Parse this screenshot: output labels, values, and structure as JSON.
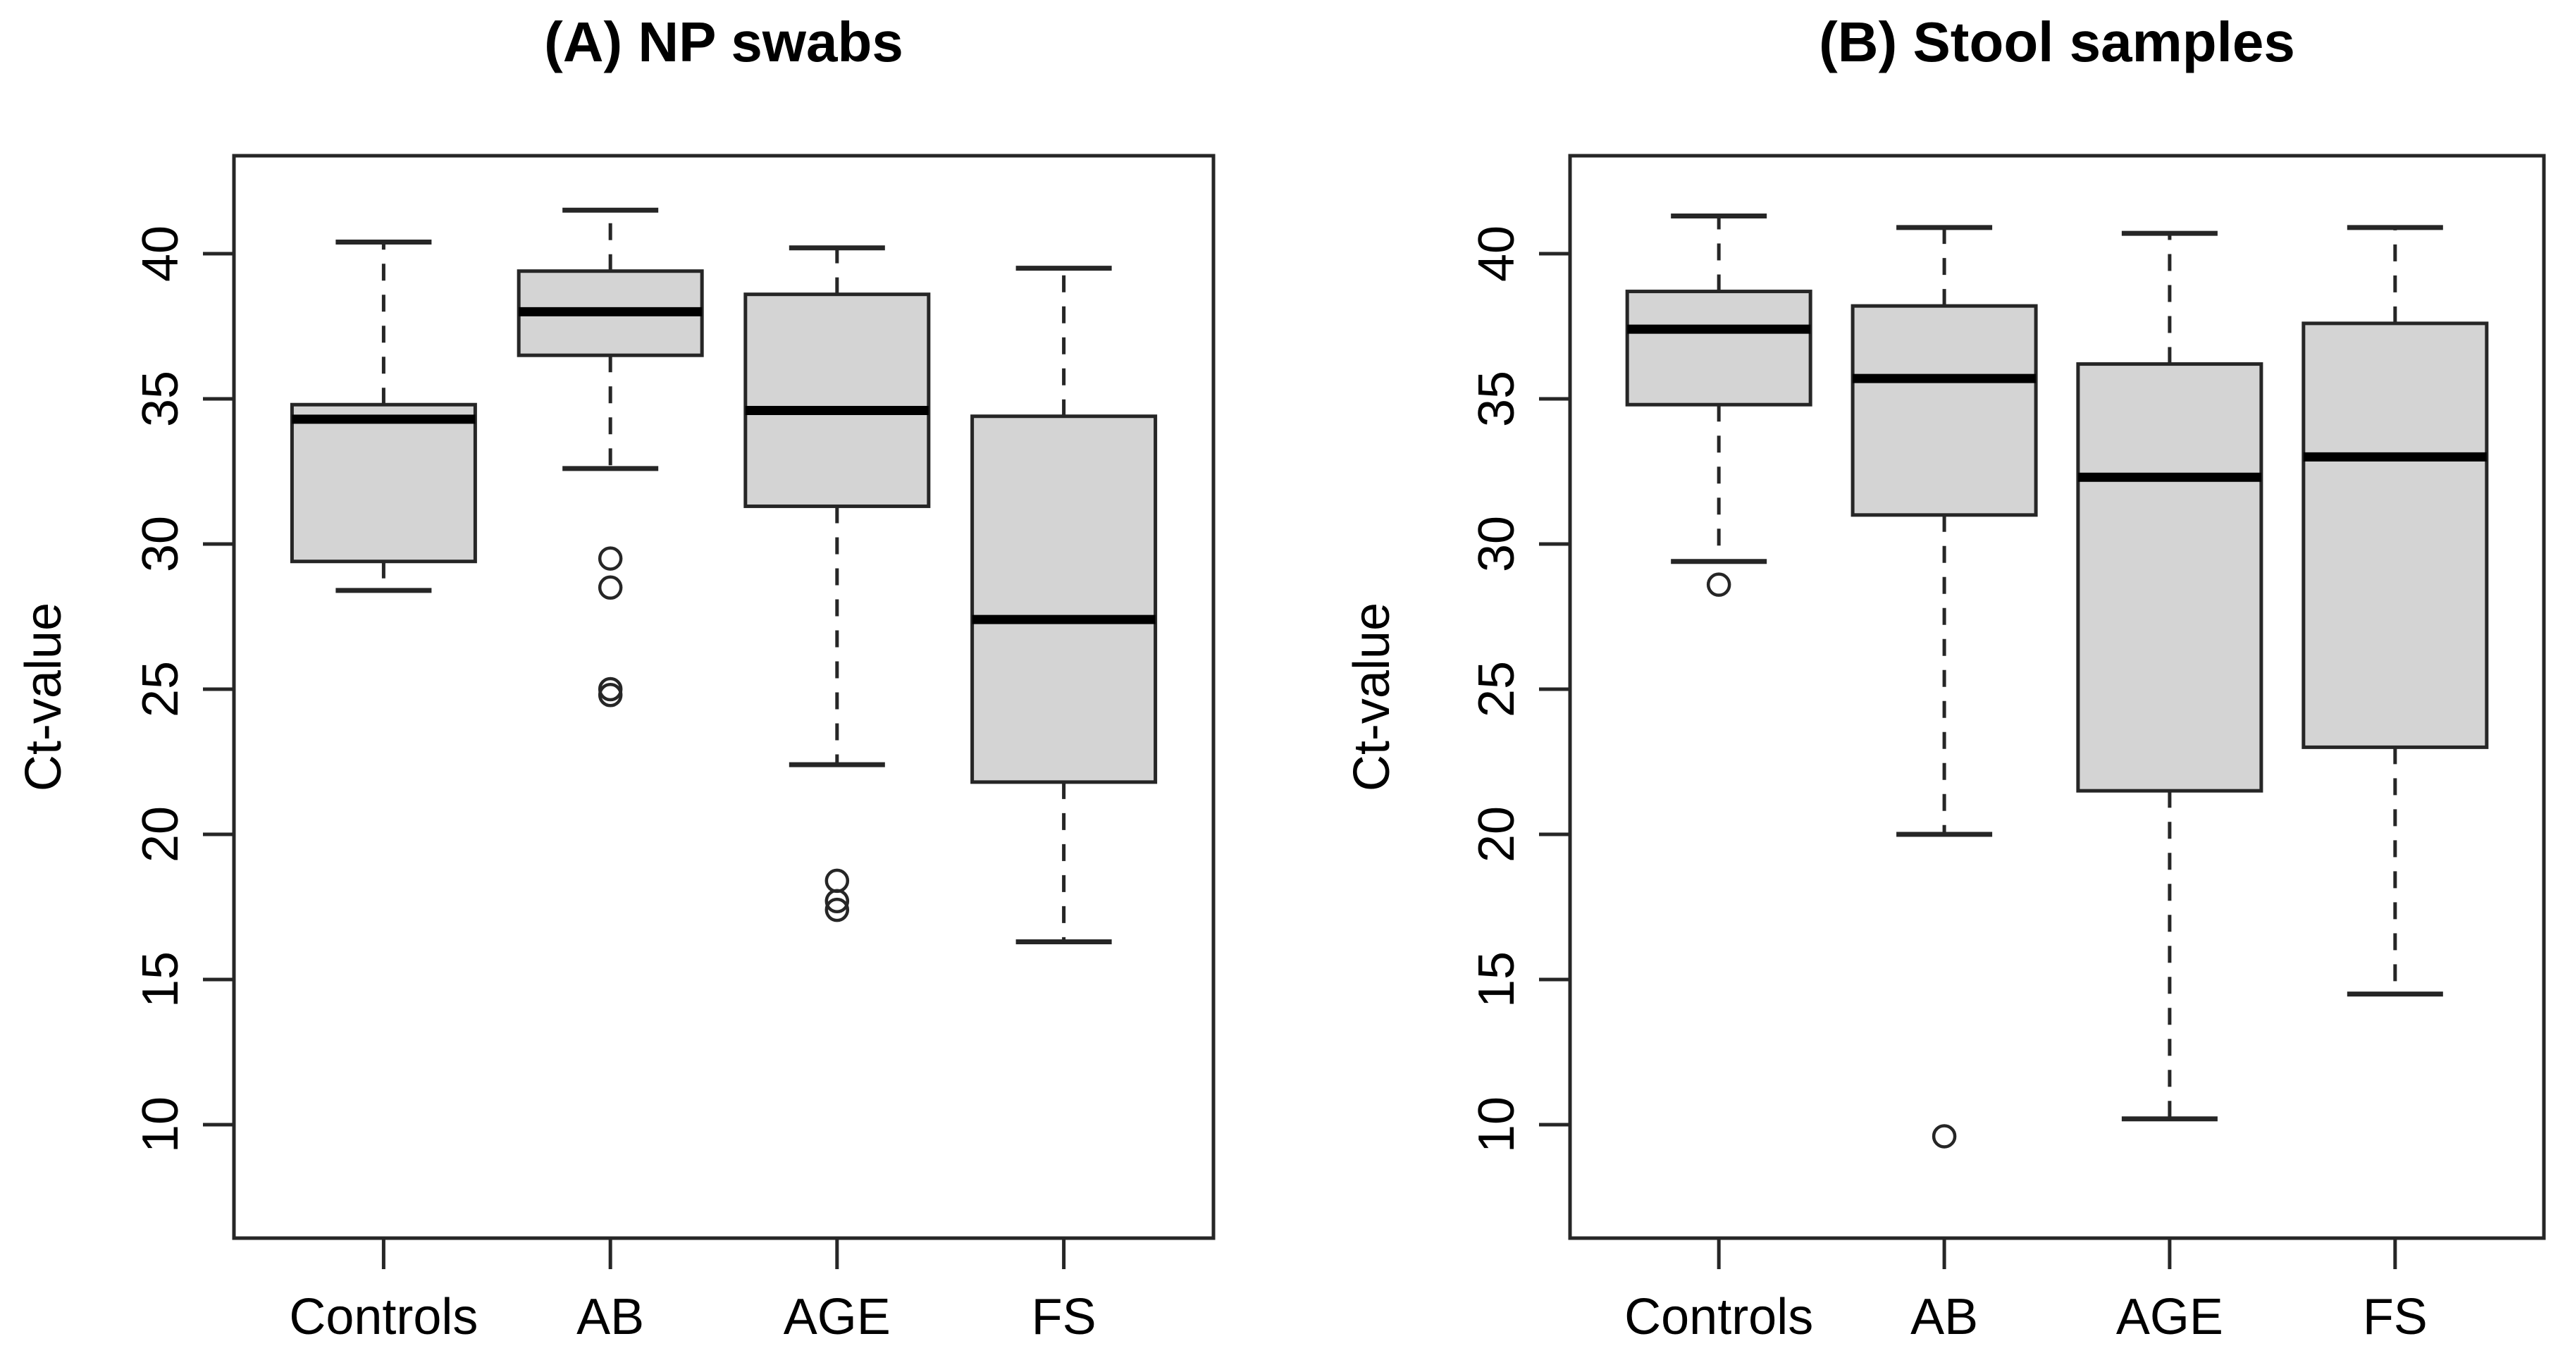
{
  "figure": {
    "background": "#ffffff",
    "text_color": "#000000"
  },
  "chart_data": [
    {
      "type": "boxplot",
      "panel": "A",
      "title": "(A) NP swabs",
      "ylabel": "Ct-value",
      "xlabel": "",
      "ylim": [
        6,
        43.5
      ],
      "yticks": [
        10,
        15,
        20,
        25,
        30,
        35,
        40
      ],
      "categories": [
        "Controls",
        "AB",
        "AGE",
        "FS"
      ],
      "grid": false,
      "legend": "none",
      "box_fill": "#d4d4d4",
      "box_stroke": "#262626",
      "median_color": "#000000",
      "series": [
        {
          "category": "Controls",
          "whisker_low": 28.4,
          "q1": 29.4,
          "median": 34.3,
          "q3": 34.8,
          "whisker_high": 40.4,
          "outliers": []
        },
        {
          "category": "AB",
          "whisker_low": 32.6,
          "q1": 36.5,
          "median": 38.0,
          "q3": 39.4,
          "whisker_high": 41.5,
          "outliers": [
            29.5,
            28.5,
            25.0,
            24.8
          ]
        },
        {
          "category": "AGE",
          "whisker_low": 22.4,
          "q1": 31.3,
          "median": 34.6,
          "q3": 38.6,
          "whisker_high": 40.2,
          "outliers": [
            18.4,
            17.7,
            17.4
          ]
        },
        {
          "category": "FS",
          "whisker_low": 16.3,
          "q1": 21.8,
          "median": 27.4,
          "q3": 34.4,
          "whisker_high": 39.5,
          "outliers": []
        }
      ]
    },
    {
      "type": "boxplot",
      "panel": "B",
      "title": "(B) Stool samples",
      "ylabel": "Ct-value",
      "xlabel": "",
      "ylim": [
        6,
        43.5
      ],
      "yticks": [
        10,
        15,
        20,
        25,
        30,
        35,
        40
      ],
      "categories": [
        "Controls",
        "AB",
        "AGE",
        "FS"
      ],
      "grid": false,
      "legend": "none",
      "box_fill": "#d4d4d4",
      "box_stroke": "#262626",
      "median_color": "#000000",
      "series": [
        {
          "category": "Controls",
          "whisker_low": 29.4,
          "q1": 34.8,
          "median": 37.4,
          "q3": 38.7,
          "whisker_high": 41.3,
          "outliers": [
            28.6
          ]
        },
        {
          "category": "AB",
          "whisker_low": 20.0,
          "q1": 31.0,
          "median": 35.7,
          "q3": 38.2,
          "whisker_high": 40.9,
          "outliers": [
            9.6
          ]
        },
        {
          "category": "AGE",
          "whisker_low": 10.2,
          "q1": 21.5,
          "median": 32.3,
          "q3": 36.2,
          "whisker_high": 40.7,
          "outliers": []
        },
        {
          "category": "FS",
          "whisker_low": 14.5,
          "q1": 23.0,
          "median": 33.0,
          "q3": 37.6,
          "whisker_high": 40.9,
          "outliers": []
        }
      ]
    }
  ]
}
